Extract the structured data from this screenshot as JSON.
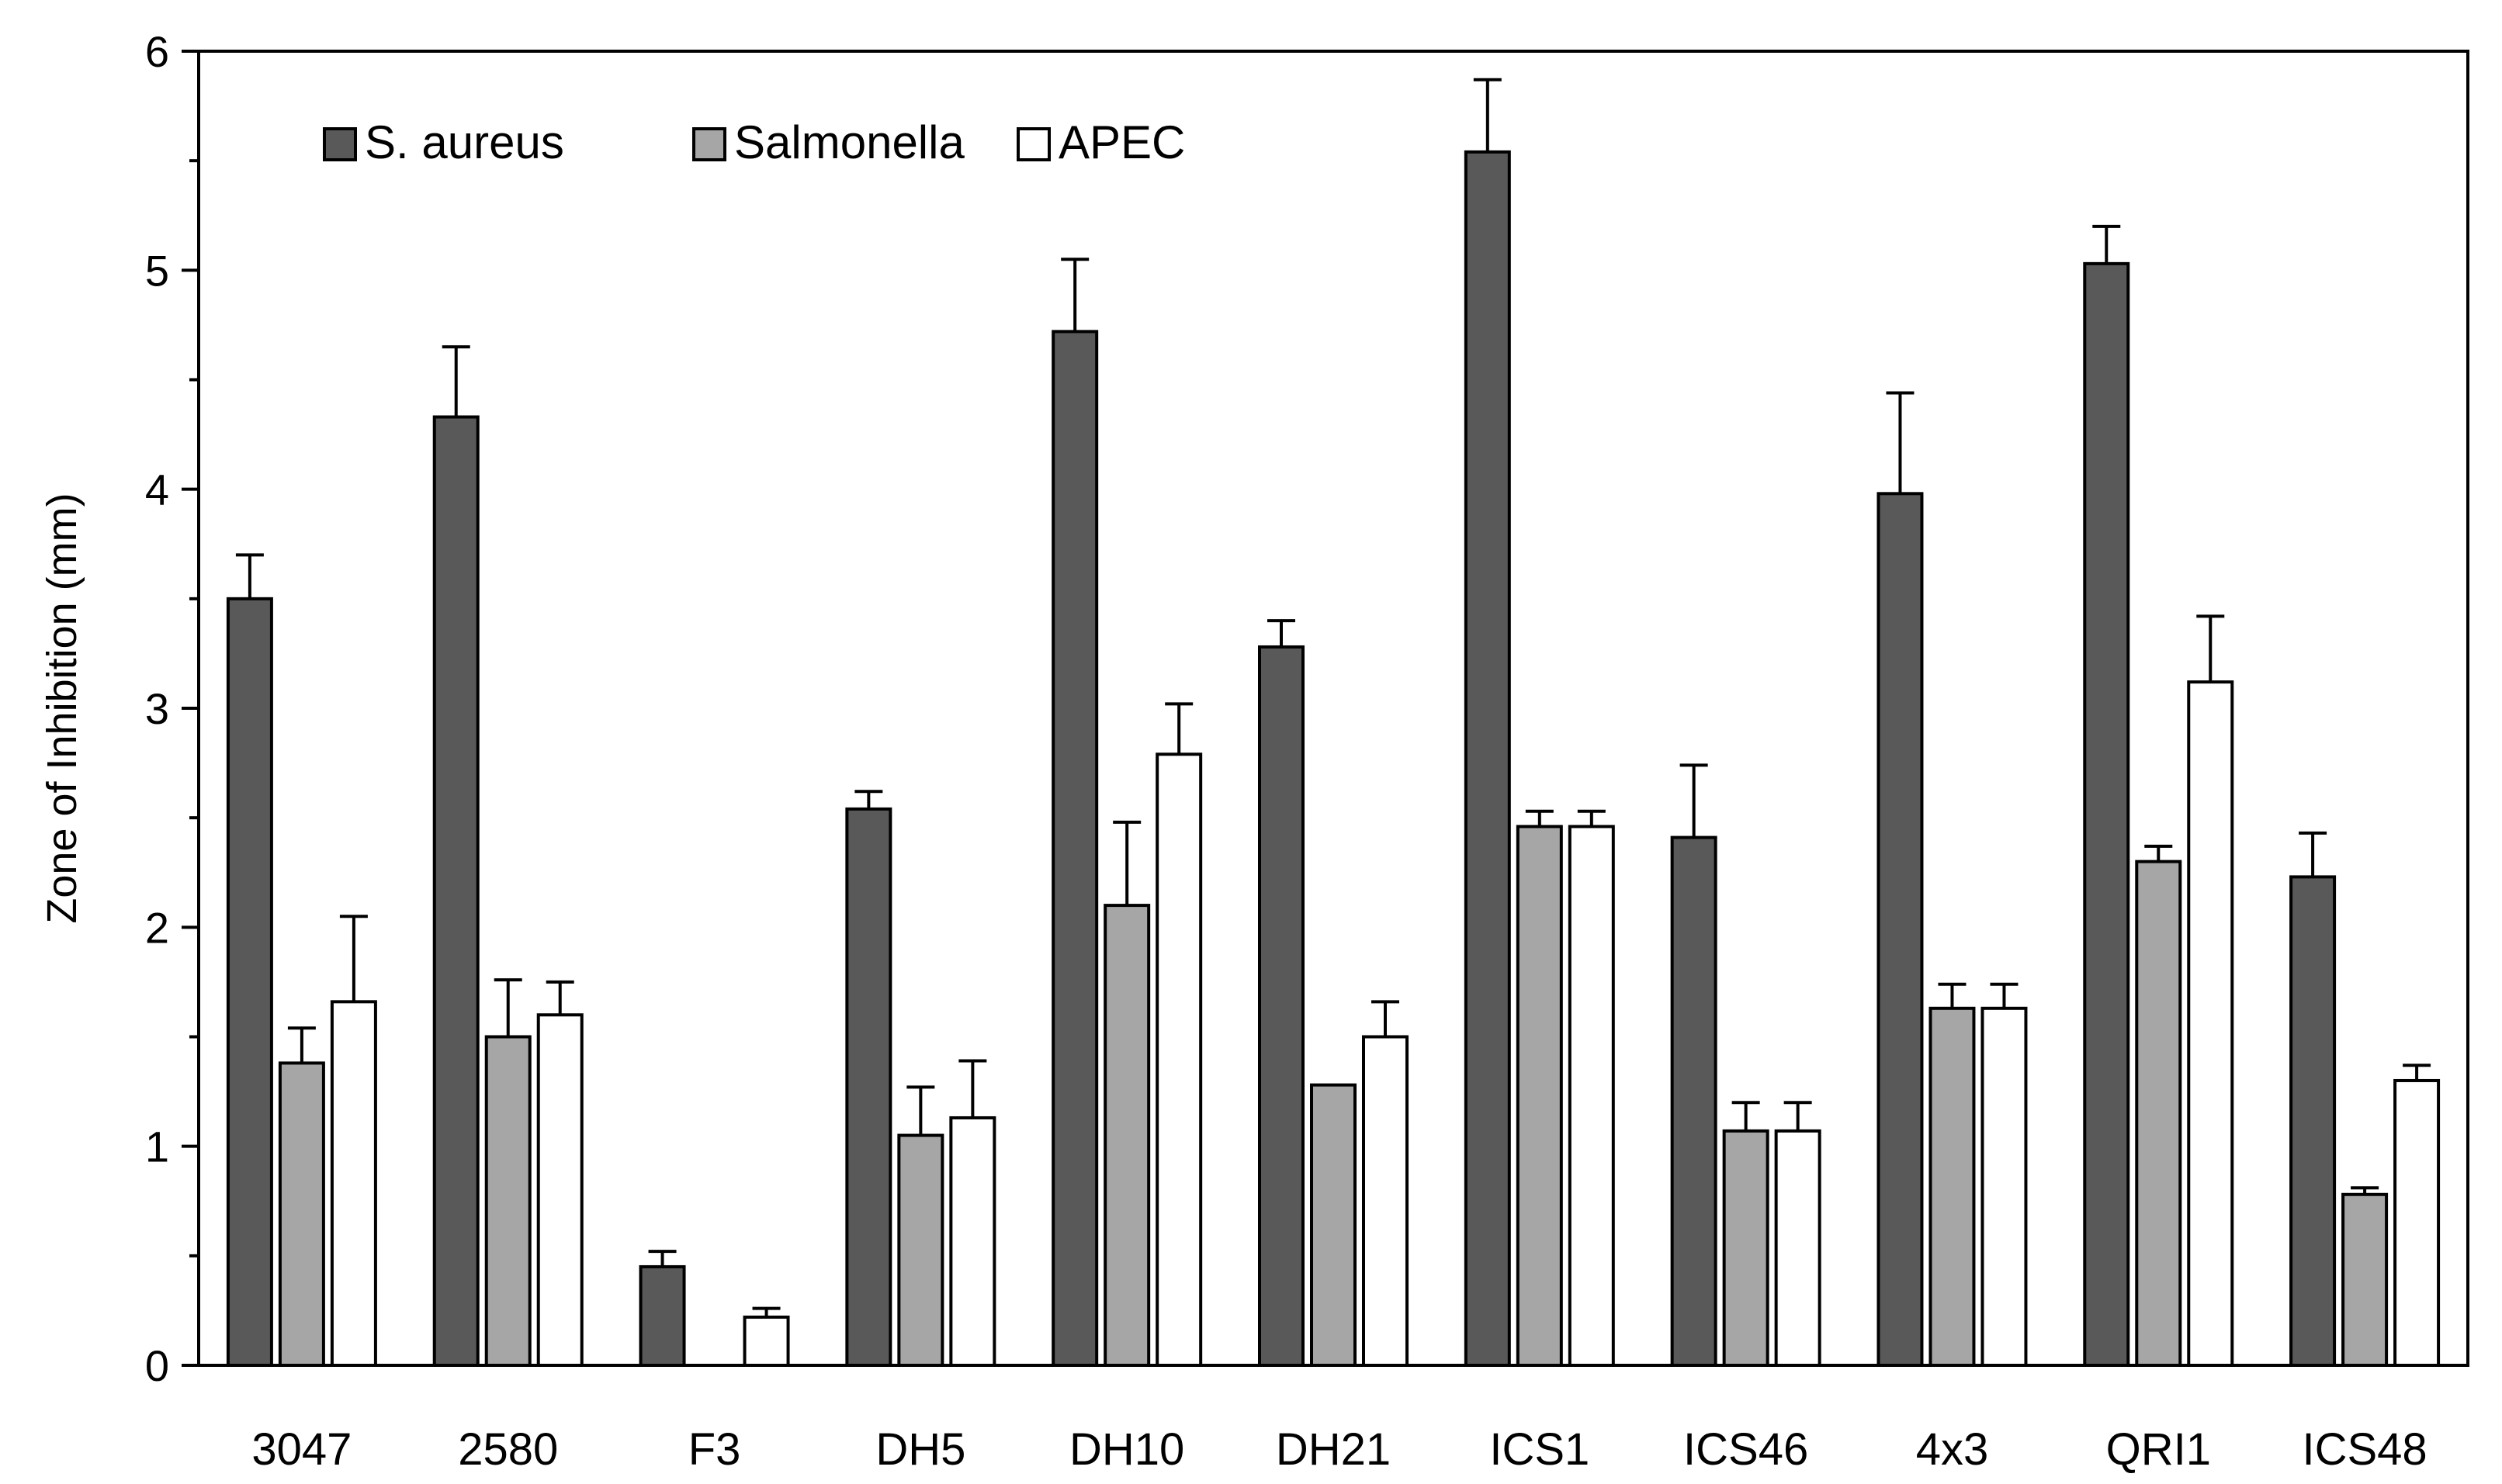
{
  "chart_data": {
    "type": "bar",
    "ylabel": "Zone of Inhibition (mm)",
    "xlabel": "",
    "ylim": [
      0,
      6
    ],
    "yticks": [
      0,
      1,
      2,
      3,
      4,
      5,
      6
    ],
    "grid": false,
    "legend_position": "top-left",
    "error_bars": true,
    "categories": [
      "3047",
      "2580",
      "F3",
      "DH5",
      "DH10",
      "DH21",
      "ICS1",
      "ICS46",
      "4x3",
      "QRI1",
      "ICS48"
    ],
    "series": [
      {
        "name": "S. aureus",
        "color": "#595959",
        "values": [
          3.5,
          4.33,
          0.45,
          2.54,
          4.72,
          3.28,
          5.54,
          2.41,
          3.98,
          5.03,
          2.23
        ],
        "errors": [
          0.2,
          0.32,
          0.07,
          0.08,
          0.33,
          0.12,
          0.33,
          0.33,
          0.46,
          0.17,
          0.2
        ]
      },
      {
        "name": "Salmonella",
        "color": "#a6a6a6",
        "values": [
          1.38,
          1.5,
          0,
          1.05,
          2.1,
          1.28,
          2.46,
          1.07,
          1.63,
          2.3,
          0.78
        ],
        "errors": [
          0.16,
          0.26,
          0,
          0.22,
          0.38,
          0,
          0.07,
          0.13,
          0.11,
          0.07,
          0.03
        ]
      },
      {
        "name": "APEC",
        "color": "#ffffff",
        "values": [
          1.66,
          1.6,
          0.22,
          1.13,
          2.79,
          1.5,
          2.46,
          1.07,
          1.63,
          3.12,
          1.3
        ],
        "errors": [
          0.39,
          0.15,
          0.04,
          0.26,
          0.23,
          0.16,
          0.07,
          0.13,
          0.11,
          0.3,
          0.07
        ]
      }
    ]
  }
}
